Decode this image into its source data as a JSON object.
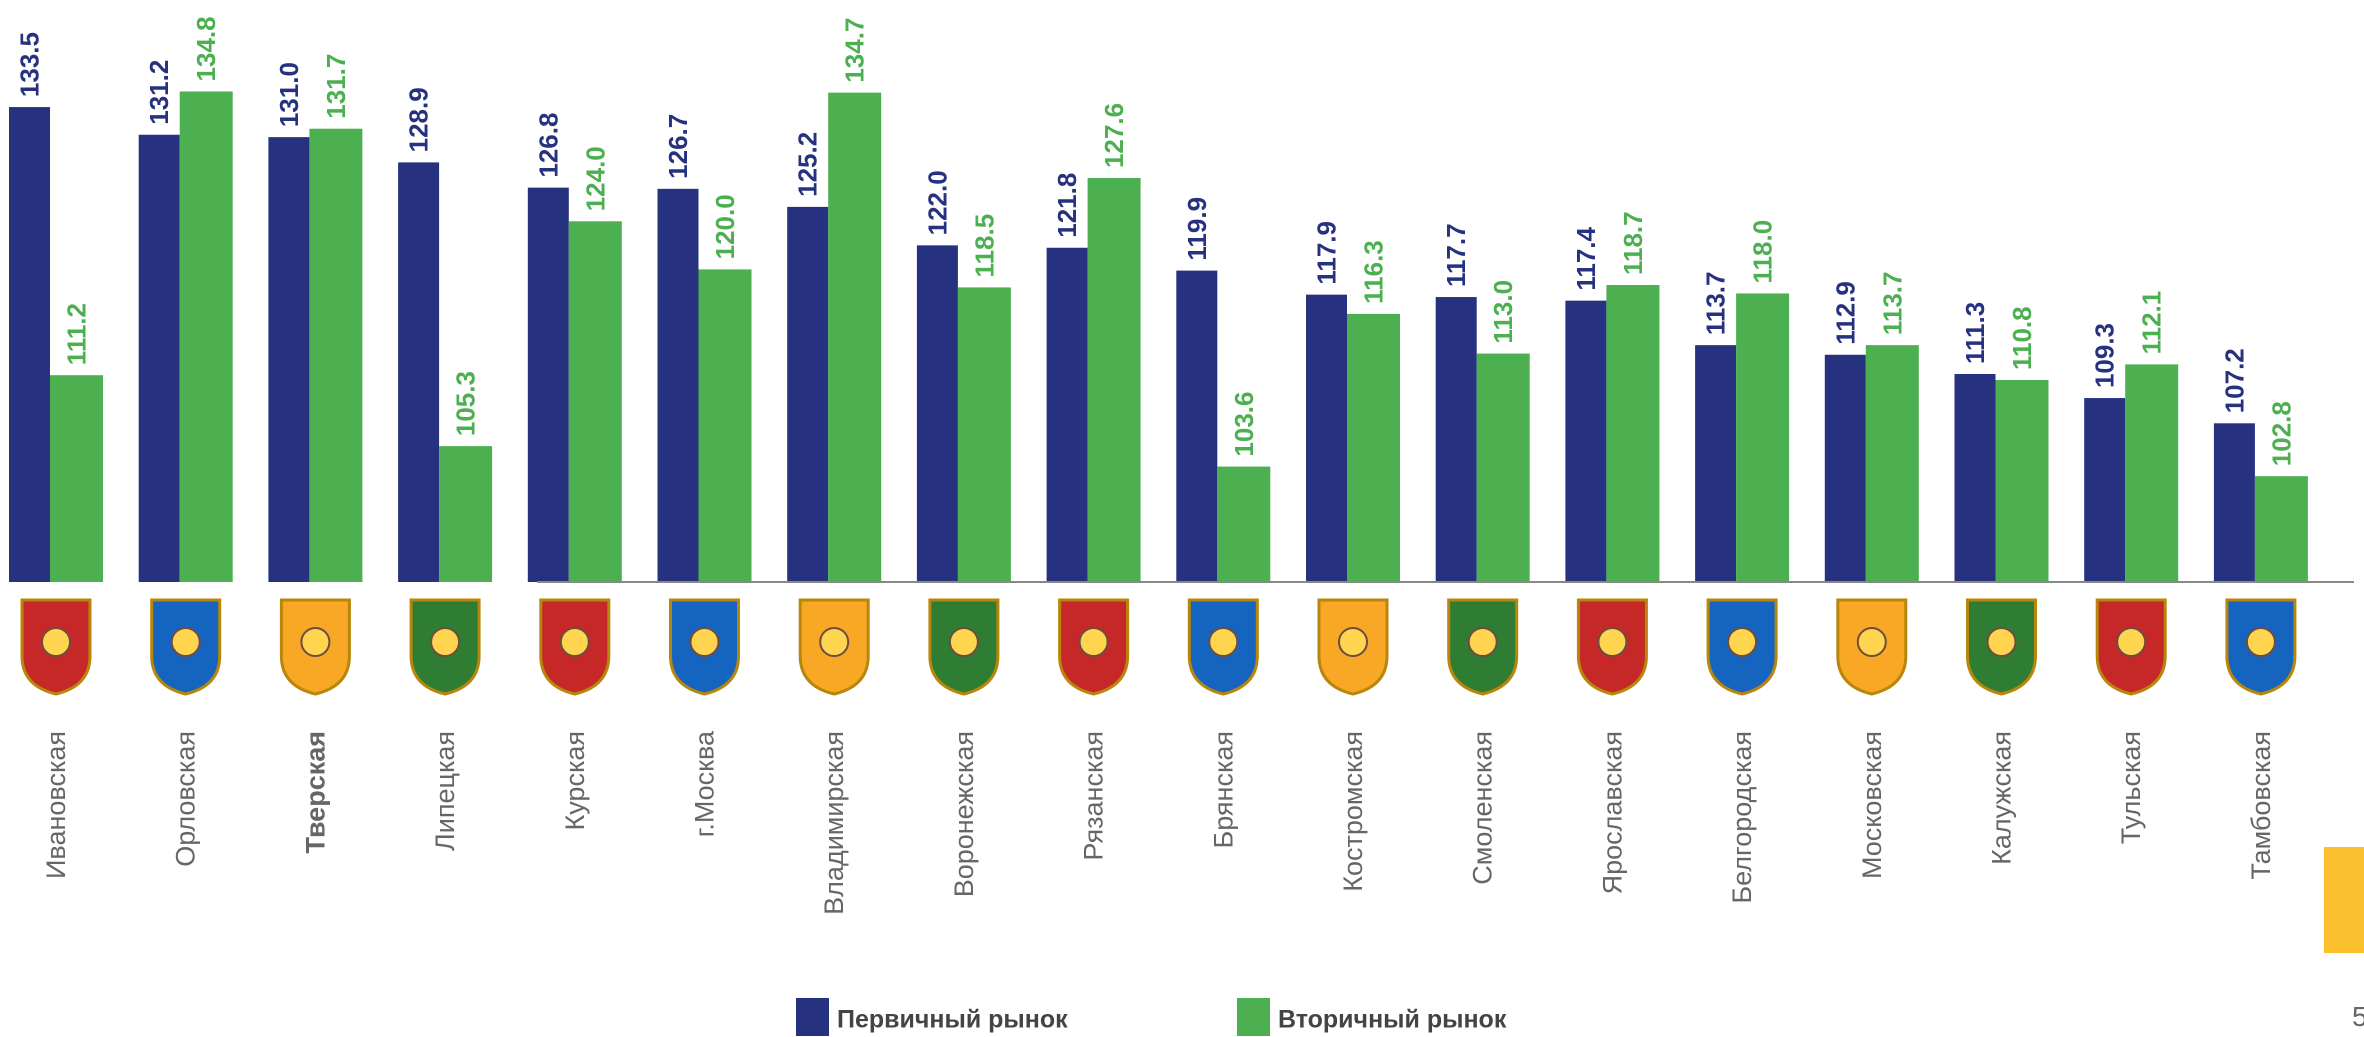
{
  "chart_data": {
    "type": "bar",
    "categories": [
      "Ивановская",
      "Орловская",
      "Тверская",
      "Липецкая",
      "Курская",
      "г.Москва",
      "Владимирская",
      "Воронежская",
      "Рязанская",
      "Брянская",
      "Костромская",
      "Смоленская",
      "Ярославская",
      "Белгородская",
      "Московская",
      "Калужская",
      "Тульская",
      "Тамбовская"
    ],
    "highlight_index": 2,
    "series": [
      {
        "name": "Первичный рынок",
        "color": "#263280",
        "values": [
          133.5,
          131.2,
          131.0,
          128.9,
          126.8,
          126.7,
          125.2,
          122.0,
          121.8,
          119.9,
          117.9,
          117.7,
          117.4,
          113.7,
          112.9,
          111.3,
          109.3,
          107.2
        ],
        "value_labels": [
          "133.5",
          "131.2",
          "131.0",
          "128.9",
          "126.8",
          "126.7",
          "125.2",
          "122.0",
          "121.8",
          "119.9",
          "117.9",
          "117.7",
          "117.4",
          "113.7",
          "112.9",
          "111.3",
          "109.3",
          "107.2"
        ]
      },
      {
        "name": "Вторичный рынок",
        "color": "#4caf50",
        "values": [
          111.2,
          134.8,
          131.7,
          105.3,
          124.0,
          120.0,
          134.7,
          118.5,
          127.6,
          103.6,
          116.3,
          113.0,
          118.7,
          118.0,
          113.7,
          110.8,
          112.1,
          102.8
        ],
        "value_labels": [
          "111.2",
          "134.8",
          "131.7",
          "105.3",
          "124.0",
          "120.0",
          "134.7",
          "118.5",
          "127.6",
          "103.6",
          "116.3",
          "113.0",
          "118.7",
          "118.0",
          "113.7",
          "110.8",
          "112.1",
          "102.8"
        ]
      }
    ],
    "ylim": [
      94,
      137
    ],
    "grid": false,
    "legend": "bottom"
  },
  "page_number": "5"
}
